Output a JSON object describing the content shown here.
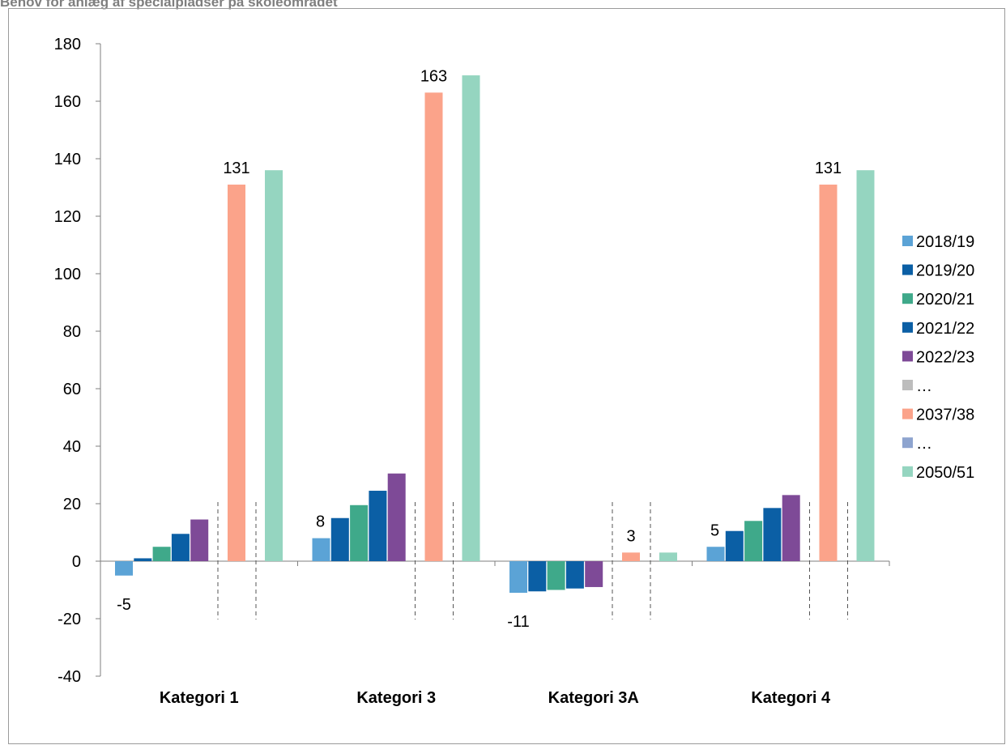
{
  "chart_data": {
    "type": "bar",
    "title": "Behov for anlæg af specialpladser på skoleområdet",
    "categories": [
      "Kategori 1",
      "Kategori 3",
      "Kategori 3A",
      "Kategori 4"
    ],
    "series": [
      {
        "name": "2018/19",
        "color": "#5ba3d6",
        "values": [
          -5,
          8,
          -11,
          5
        ]
      },
      {
        "name": "2019/20",
        "color": "#0b5fa5",
        "values": [
          1,
          15,
          -10.5,
          10.5
        ]
      },
      {
        "name": "2020/21",
        "color": "#3fa98a",
        "values": [
          5,
          19.5,
          -10,
          14
        ]
      },
      {
        "name": "2021/22",
        "color": "#0b5fa5",
        "values": [
          9.5,
          24.5,
          -9.5,
          18.5
        ]
      },
      {
        "name": "2022/23",
        "color": "#7e4a97",
        "values": [
          14.5,
          30.5,
          -9,
          23
        ]
      },
      {
        "name": "…",
        "color": "#bdbdbd",
        "values": [
          null,
          null,
          null,
          null
        ]
      },
      {
        "name": "2037/38",
        "color": "#fba38a",
        "values": [
          131,
          163,
          3,
          131
        ]
      },
      {
        "name": "…",
        "color": "#8ea4cf",
        "values": [
          null,
          null,
          null,
          null
        ]
      },
      {
        "name": "2050/51",
        "color": "#95d5c0",
        "values": [
          136,
          169,
          3,
          136
        ]
      }
    ],
    "data_labels": [
      {
        "category": 0,
        "series": 0,
        "text": "-5"
      },
      {
        "category": 0,
        "series": 6,
        "text": "131"
      },
      {
        "category": 1,
        "series": 0,
        "text": "8"
      },
      {
        "category": 1,
        "series": 6,
        "text": "163"
      },
      {
        "category": 2,
        "series": 0,
        "text": "-11"
      },
      {
        "category": 2,
        "series": 6,
        "text": "3"
      },
      {
        "category": 3,
        "series": 0,
        "text": "5"
      },
      {
        "category": 3,
        "series": 6,
        "text": "131"
      }
    ],
    "ylim": [
      -40,
      180
    ],
    "yticks": [
      -40,
      -20,
      0,
      20,
      40,
      60,
      80,
      100,
      120,
      140,
      160,
      180
    ],
    "grid": false,
    "legend": "right",
    "xlabel": "",
    "ylabel": ""
  }
}
